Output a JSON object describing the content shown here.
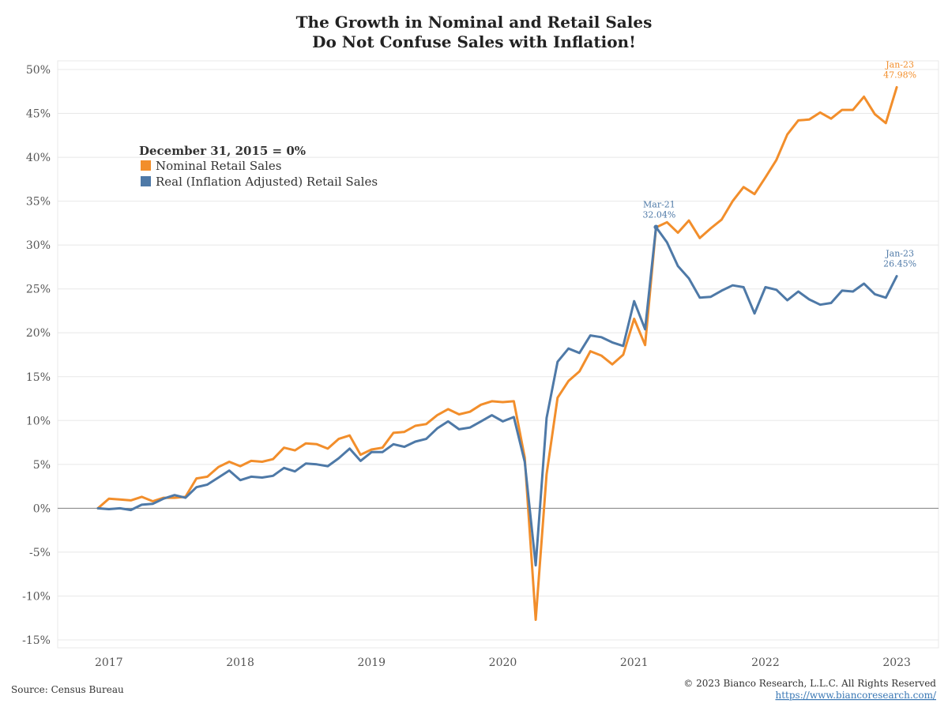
{
  "colors": {
    "nominal": "#f28e2b",
    "real": "#4e79a7",
    "grid": "#e8e8e8",
    "zero_line": "#7f7f7f"
  },
  "chart_data": {
    "type": "line",
    "title_lines": [
      "The Growth in Nominal and Retail Sales",
      "Do Not Confuse Sales with Inflation!"
    ],
    "ylim": [
      -15,
      50
    ],
    "y_ticks": [
      50,
      45,
      40,
      35,
      30,
      25,
      20,
      15,
      10,
      5,
      0,
      -5,
      -10,
      -15
    ],
    "y_tick_labels": [
      "50%",
      "45%",
      "40%",
      "35%",
      "30%",
      "25%",
      "20%",
      "15%",
      "10%",
      "5%",
      "0%",
      "-5%",
      "-10%",
      "-15%"
    ],
    "x_range": [
      "2016-12",
      "2023-02"
    ],
    "x_tick_labels": [
      {
        "label": "2017",
        "date": "2017-01"
      },
      {
        "label": "2018",
        "date": "2018-01"
      },
      {
        "label": "2019",
        "date": "2019-01"
      },
      {
        "label": "2020",
        "date": "2020-01"
      },
      {
        "label": "2021",
        "date": "2021-01"
      },
      {
        "label": "2022",
        "date": "2022-01"
      },
      {
        "label": "2023",
        "date": "2023-01"
      }
    ],
    "grid": true,
    "legend": {
      "title": "December 31, 2015 = 0%",
      "placement": "upper-left",
      "items": [
        "Nominal Retail Sales",
        "Real (Inflation Adjusted) Retail Sales"
      ]
    },
    "x": [
      "2016-12",
      "2017-01",
      "2017-02",
      "2017-03",
      "2017-04",
      "2017-05",
      "2017-06",
      "2017-07",
      "2017-08",
      "2017-09",
      "2017-10",
      "2017-11",
      "2017-12",
      "2018-01",
      "2018-02",
      "2018-03",
      "2018-04",
      "2018-05",
      "2018-06",
      "2018-07",
      "2018-08",
      "2018-09",
      "2018-10",
      "2018-11",
      "2018-12",
      "2019-01",
      "2019-02",
      "2019-03",
      "2019-04",
      "2019-05",
      "2019-06",
      "2019-07",
      "2019-08",
      "2019-09",
      "2019-10",
      "2019-11",
      "2019-12",
      "2020-01",
      "2020-02",
      "2020-03",
      "2020-04",
      "2020-05",
      "2020-06",
      "2020-07",
      "2020-08",
      "2020-09",
      "2020-10",
      "2020-11",
      "2020-12",
      "2021-01",
      "2021-02",
      "2021-03",
      "2021-04",
      "2021-05",
      "2021-06",
      "2021-07",
      "2021-08",
      "2021-09",
      "2021-10",
      "2021-11",
      "2021-12",
      "2022-01",
      "2022-02",
      "2022-03",
      "2022-04",
      "2022-05",
      "2022-06",
      "2022-07",
      "2022-08",
      "2022-09",
      "2022-10",
      "2022-11",
      "2022-12",
      "2023-01"
    ],
    "series": [
      {
        "name": "Nominal Retail Sales",
        "values": [
          0.0,
          1.1,
          1.0,
          0.9,
          1.3,
          0.8,
          1.2,
          1.2,
          1.3,
          3.4,
          3.6,
          4.7,
          5.3,
          4.8,
          5.4,
          5.3,
          5.6,
          6.9,
          6.6,
          7.4,
          7.3,
          6.8,
          7.9,
          8.3,
          6.1,
          6.7,
          6.9,
          8.6,
          8.7,
          9.4,
          9.6,
          10.6,
          11.3,
          10.7,
          11.0,
          11.8,
          12.2,
          12.1,
          12.2,
          5.8,
          -12.7,
          3.9,
          12.6,
          14.5,
          15.6,
          17.9,
          17.4,
          16.4,
          17.5,
          21.6,
          18.6,
          32.0,
          32.6,
          31.4,
          32.8,
          30.8,
          31.9,
          32.9,
          35.0,
          36.6,
          35.8,
          37.7,
          39.7,
          42.6,
          44.2,
          44.3,
          45.1,
          44.4,
          45.4,
          45.4,
          46.9,
          44.9,
          43.9,
          47.98
        ]
      },
      {
        "name": "Real (Inflation Adjusted) Retail Sales",
        "values": [
          0.0,
          -0.1,
          0.0,
          -0.2,
          0.4,
          0.5,
          1.1,
          1.5,
          1.2,
          2.4,
          2.7,
          3.5,
          4.3,
          3.2,
          3.6,
          3.5,
          3.7,
          4.6,
          4.2,
          5.1,
          5.0,
          4.8,
          5.7,
          6.8,
          5.4,
          6.4,
          6.4,
          7.3,
          7.0,
          7.6,
          7.9,
          9.1,
          9.9,
          9.0,
          9.2,
          9.9,
          10.6,
          9.9,
          10.4,
          5.3,
          -6.5,
          10.3,
          16.7,
          18.2,
          17.7,
          19.7,
          19.5,
          18.9,
          18.5,
          23.6,
          20.4,
          32.04,
          30.3,
          27.6,
          26.2,
          24.0,
          24.1,
          24.8,
          25.4,
          25.2,
          22.2,
          25.2,
          24.9,
          23.7,
          24.7,
          23.8,
          23.2,
          23.4,
          24.8,
          24.7,
          25.6,
          24.4,
          24.0,
          26.45
        ]
      }
    ],
    "annotations": [
      {
        "series": 0,
        "date": "2023-01",
        "line1": "Jan-23",
        "line2": "47.98%",
        "color": "#f28e2b"
      },
      {
        "series": 1,
        "date": "2021-03",
        "line1": "Mar-21",
        "line2": "32.04%",
        "color": "#4e79a7"
      },
      {
        "series": 1,
        "date": "2023-01",
        "line1": "Jan-23",
        "line2": "26.45%",
        "color": "#4e79a7"
      }
    ]
  },
  "footer": {
    "source": "Source: Census Bureau",
    "copyright": "© 2023 Bianco Research, L.L.C. All Rights Reserved",
    "link": "https://www.biancoresearch.com/"
  }
}
